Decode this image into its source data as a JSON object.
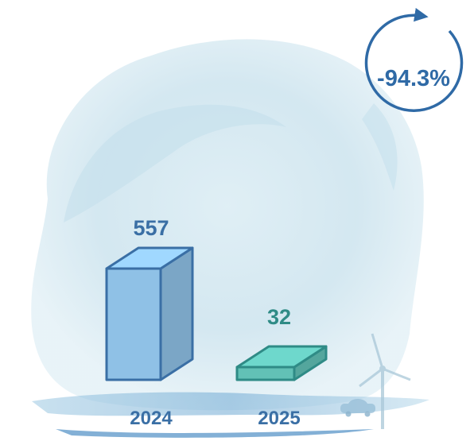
{
  "chart_data": {
    "type": "bar",
    "categories": [
      "2024",
      "2025"
    ],
    "values": [
      557,
      32
    ],
    "value_labels": [
      "557",
      "32"
    ],
    "change_badge": "-94.3%",
    "colors": {
      "bar_2024": "#8fc1e6",
      "bar_2025": "#62c1b6",
      "label_blue": "#3a6fa5",
      "label_teal": "#2f8b86",
      "badge_ring": "#2f6aa6"
    },
    "decor_icons": [
      "watercolor-splash",
      "wind-turbine",
      "car"
    ]
  }
}
